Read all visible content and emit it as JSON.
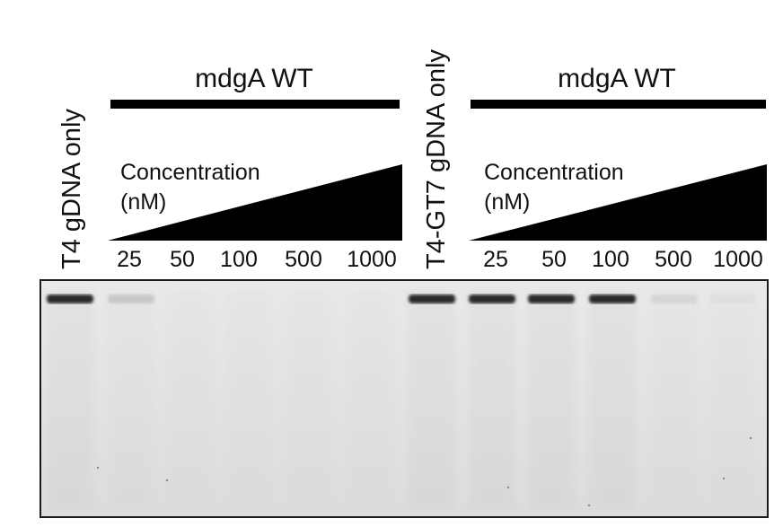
{
  "lane_labels_control": {
    "left": "T4 gDNA only",
    "right": "T4-GT7 gDNA only"
  },
  "group_left": {
    "title": "mdgA WT",
    "concentration_line1": "Concentration",
    "concentration_line2": "(nM)",
    "lanes": [
      "25",
      "50",
      "100",
      "500",
      "1000"
    ]
  },
  "group_right": {
    "title": "mdgA WT",
    "concentration_line1": "Concentration",
    "concentration_line2": "(nM)",
    "lanes": [
      "25",
      "50",
      "100",
      "500",
      "1000"
    ]
  },
  "gel": {
    "background_color": "#e6e6e6",
    "band_color": "#2a2a2a",
    "lane_band_intensity": [
      1.0,
      0.15,
      0.0,
      0.0,
      0.0,
      0.0,
      1.0,
      1.0,
      1.0,
      1.0,
      0.08,
      0.03
    ]
  }
}
